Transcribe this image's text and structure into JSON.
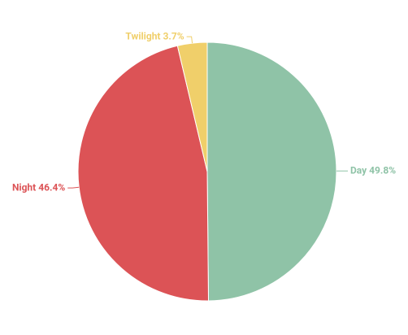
{
  "chart_data": {
    "type": "pie",
    "categories": [
      "Day",
      "Night",
      "Twilight"
    ],
    "values": [
      49.8,
      46.4,
      3.7
    ],
    "value_labels": [
      "Day 49.8%",
      "Night 46.4%",
      "Twilight 3.7%"
    ],
    "colors": [
      "#8fc3a7",
      "#dc5356",
      "#f0cf6a"
    ]
  }
}
